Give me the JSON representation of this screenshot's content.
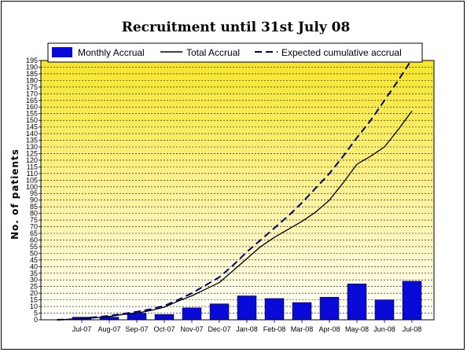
{
  "chart_data": {
    "type": "bar",
    "title": "Recruitment until 31st July 08",
    "xlabel": "",
    "ylabel": "No. of patients",
    "categories": [
      "Jul-07",
      "Aug-07",
      "Sep-07",
      "Oct-07",
      "Nov-07",
      "Dec-07",
      "Jan-08",
      "Feb-08",
      "Mar-08",
      "Apr-08",
      "May-08",
      "Jun-08",
      "Jul-08"
    ],
    "ylim": [
      0,
      195
    ],
    "ytick_step": 5,
    "grid": true,
    "legend_position": "top",
    "series": [
      {
        "name": "Monthly Accrual",
        "type": "bar",
        "color": "#0a0ad8",
        "values": [
          2,
          2,
          5,
          4,
          9,
          12,
          18,
          16,
          13,
          17,
          27,
          15,
          29
        ]
      },
      {
        "name": "Total Accrual",
        "type": "line",
        "style": "solid",
        "color": "#000000",
        "x": [
          -0.9,
          -0.3,
          0,
          0.5,
          1,
          1.5,
          2,
          2.5,
          3,
          3.5,
          4,
          4.5,
          5,
          5.5,
          6,
          6.5,
          7,
          7.5,
          8,
          8.5,
          9,
          9.5,
          10,
          10.5,
          11,
          11.5,
          12
        ],
        "values": [
          0,
          0.5,
          1,
          1.5,
          2.5,
          4,
          5,
          7,
          9.5,
          14,
          18,
          23,
          28,
          37,
          46,
          55,
          62,
          68,
          74,
          81,
          90,
          103,
          117,
          123,
          130,
          143,
          157
        ]
      },
      {
        "name": "Expected cumulative accrual",
        "type": "line",
        "style": "dashed",
        "color": "#00006e",
        "x": [
          -0.9,
          -0.3,
          0,
          0.5,
          1,
          1.5,
          2,
          2.5,
          3,
          3.5,
          4,
          4.5,
          5,
          5.5,
          6,
          6.5,
          7,
          7.5,
          8,
          8.5,
          9,
          9.5,
          10,
          10.5,
          11,
          11.5,
          12
        ],
        "values": [
          0,
          0.5,
          1,
          2,
          3,
          4.5,
          6,
          8,
          10.5,
          15,
          20,
          26,
          32,
          41,
          51,
          60,
          69,
          78,
          88,
          99,
          110,
          123,
          137,
          150,
          165,
          180,
          196
        ]
      }
    ]
  }
}
